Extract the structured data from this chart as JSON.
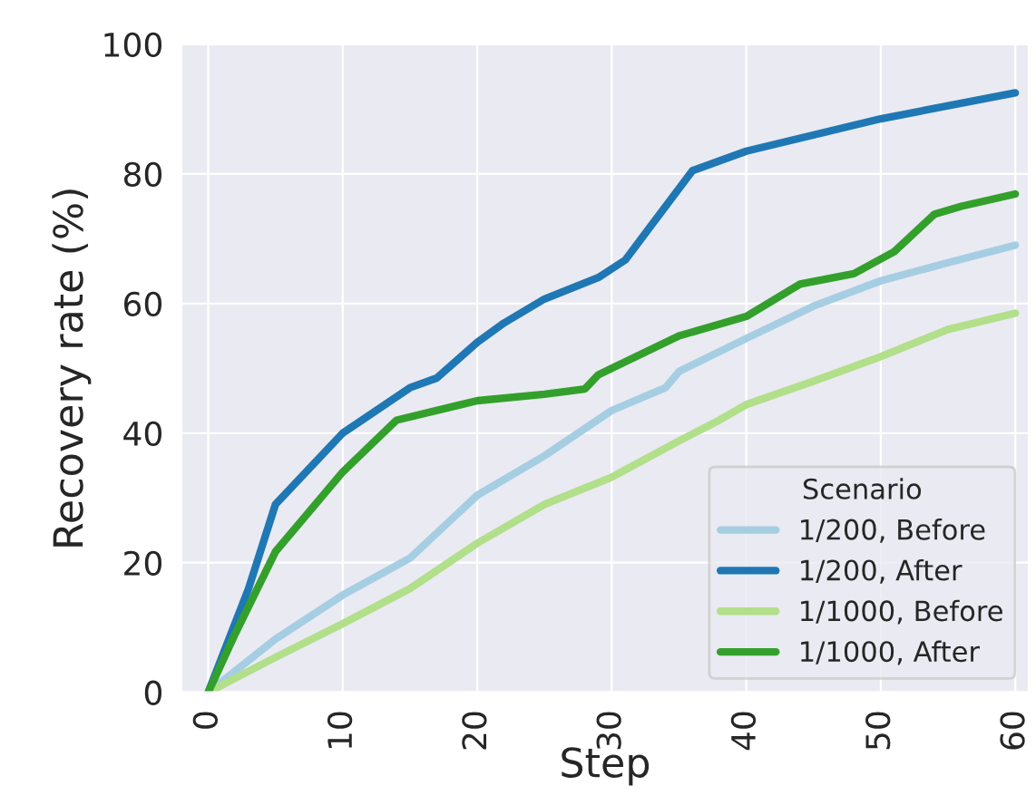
{
  "chart_data": {
    "type": "line",
    "xlabel": "Step",
    "ylabel": "Recovery rate (%)",
    "legend_title": "Scenario",
    "legend": "bottom right",
    "grid": true,
    "xlim": [
      -2,
      61
    ],
    "ylim": [
      0,
      100
    ],
    "xticks": [
      0,
      10,
      20,
      30,
      40,
      50,
      60
    ],
    "yticks": [
      0,
      20,
      40,
      60,
      80,
      100
    ],
    "series": [
      {
        "name": "1/200, Before",
        "color": "#a6cee3",
        "x": [
          0,
          5,
          10,
          15,
          20,
          25,
          30,
          34,
          35,
          40,
          45,
          50,
          55,
          60
        ],
        "values": [
          0,
          8.2,
          15,
          20.7,
          30.4,
          36.5,
          43.5,
          47,
          49.5,
          54.6,
          59.6,
          63.5,
          66.3,
          69
        ]
      },
      {
        "name": "1/200, After",
        "color": "#1f78b4",
        "x": [
          0,
          3,
          5,
          10,
          15,
          17,
          20,
          22,
          25,
          29,
          31,
          36,
          40,
          50,
          60
        ],
        "values": [
          0,
          16,
          29,
          40,
          47,
          48.5,
          54,
          57,
          60.7,
          64,
          66.7,
          80.5,
          83.5,
          88.5,
          92.5
        ]
      },
      {
        "name": "1/1000, Before",
        "color": "#b2df8a",
        "x": [
          0,
          5,
          10,
          15,
          20,
          25,
          30,
          35,
          38,
          40,
          45,
          50,
          55,
          60
        ],
        "values": [
          0,
          5.4,
          10.6,
          16,
          23,
          29,
          33.2,
          38.8,
          42,
          44.4,
          48,
          51.8,
          56,
          58.5
        ]
      },
      {
        "name": "1/1000, After",
        "color": "#33a02c",
        "x": [
          0,
          2,
          5,
          10,
          14,
          20,
          25,
          28,
          29,
          30,
          35,
          40,
          44,
          48,
          51,
          54,
          56,
          60
        ],
        "values": [
          0,
          9,
          21.7,
          34,
          42,
          45,
          46,
          46.8,
          49,
          50,
          55,
          58,
          63,
          64.6,
          68,
          73.8,
          75,
          76.9
        ]
      }
    ]
  }
}
